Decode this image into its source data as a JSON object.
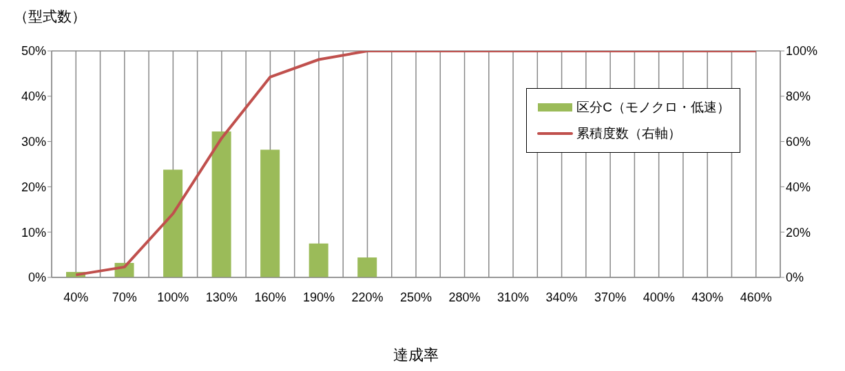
{
  "chart_data": {
    "type": "bar",
    "ylabel": "（型式数）",
    "xlabel": "達成率",
    "categories": [
      "40%",
      "70%",
      "100%",
      "130%",
      "160%",
      "190%",
      "220%",
      "250%",
      "280%",
      "310%",
      "340%",
      "370%",
      "400%",
      "430%",
      "460%"
    ],
    "series": [
      {
        "name": "区分C（モノクロ・低速）",
        "color": "#9bbb59",
        "values": [
          1.2,
          3.2,
          23.8,
          32.2,
          28.2,
          7.5,
          4.4,
          0,
          0,
          0,
          0,
          0,
          0,
          0,
          0
        ]
      },
      {
        "name": "累積度数（右軸）",
        "type": "line",
        "axis": "y2",
        "color": "#c0504d",
        "values": [
          1.1,
          4.6,
          28.2,
          61.5,
          88.5,
          96.2,
          100,
          100,
          100,
          100,
          100,
          100,
          100,
          100,
          100
        ]
      }
    ],
    "ylim": [
      0,
      50
    ],
    "yticks": [
      {
        "value": 0,
        "label": "0%"
      },
      {
        "value": 10,
        "label": "10%"
      },
      {
        "value": 20,
        "label": "20%"
      },
      {
        "value": 30,
        "label": "30%"
      },
      {
        "value": 40,
        "label": "40%"
      },
      {
        "value": 50,
        "label": "50%"
      }
    ],
    "y2lim": [
      0,
      100
    ],
    "y2ticks": [
      {
        "value": 0,
        "label": "0%"
      },
      {
        "value": 20,
        "label": "20%"
      },
      {
        "value": 40,
        "label": "40%"
      },
      {
        "value": 60,
        "label": "60%"
      },
      {
        "value": 80,
        "label": "80%"
      },
      {
        "value": 100,
        "label": "100%"
      }
    ],
    "grid": true,
    "legend": "top right",
    "marker": "none"
  }
}
